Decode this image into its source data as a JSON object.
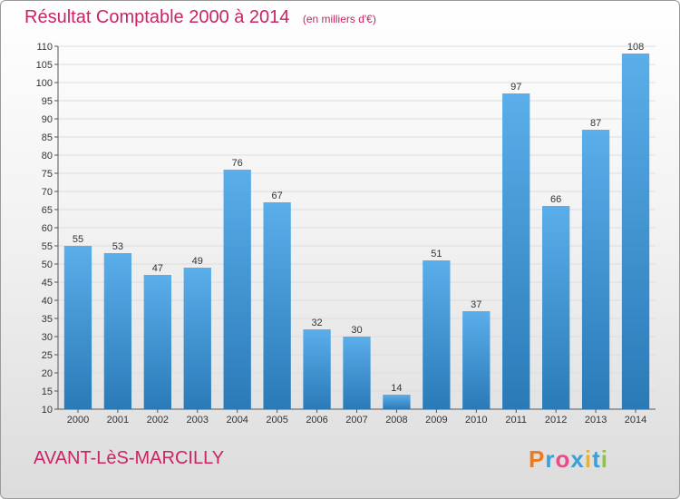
{
  "title": "Résultat Comptable 2000 à 2014",
  "subtitle": "(en milliers d'€)",
  "commune": "AVANT-LèS-MARCILLY",
  "logo": {
    "letters": [
      "P",
      "r",
      "o",
      "x",
      "i",
      "t",
      "i"
    ],
    "colors": [
      "#f07a1a",
      "#3aa0d8",
      "#e84a8a",
      "#3aa0d8",
      "#f0b020",
      "#3aa0d8",
      "#8cc63f"
    ]
  },
  "colors": {
    "bar_light": "#5aaeea",
    "bar_dark": "#2a7ab8",
    "title": "#cc2266"
  },
  "chart_data": {
    "type": "bar",
    "categories": [
      "2000",
      "2001",
      "2002",
      "2003",
      "2004",
      "2005",
      "2006",
      "2007",
      "2008",
      "2009",
      "2010",
      "2011",
      "2012",
      "2013",
      "2014"
    ],
    "values": [
      55,
      53,
      47,
      49,
      76,
      67,
      32,
      30,
      14,
      51,
      37,
      97,
      66,
      87,
      108
    ],
    "data_labels": [
      "55",
      "53",
      "47",
      "49",
      "76",
      "67",
      "32",
      "30",
      "14",
      "51",
      "37",
      "97",
      "66",
      "87",
      "108"
    ],
    "ylim": [
      10,
      110
    ],
    "yticks": [
      "10",
      "15",
      "20",
      "25",
      "30",
      "35",
      "40",
      "45",
      "50",
      "55",
      "60",
      "65",
      "70",
      "75",
      "80",
      "85",
      "90",
      "95",
      "100",
      "105",
      "110"
    ],
    "grid": true,
    "legend": "none"
  }
}
